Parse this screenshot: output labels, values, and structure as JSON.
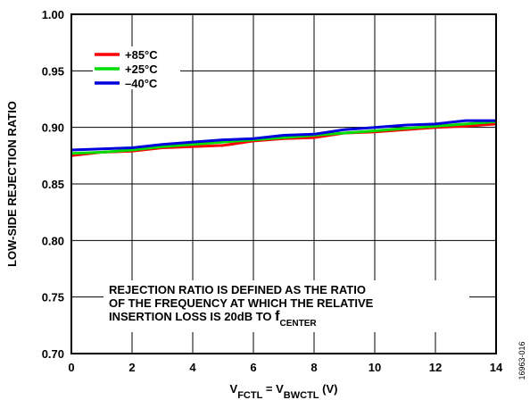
{
  "chart_data": {
    "type": "line",
    "title": "",
    "xlabel": {
      "parts": [
        {
          "text": "V",
          "sub": false
        },
        {
          "text": "FCTL",
          "sub": true
        },
        {
          "text": " = V",
          "sub": false
        },
        {
          "text": "BWCTL",
          "sub": true
        },
        {
          "text": " (V)",
          "sub": false
        }
      ]
    },
    "ylabel": "LOW-SIDE REJECTION RATIO",
    "xlim": [
      0,
      14
    ],
    "ylim": [
      0.7,
      1.0
    ],
    "xticks": [
      0,
      2,
      4,
      6,
      8,
      10,
      12,
      14
    ],
    "yticks": [
      0.7,
      0.75,
      0.8,
      0.85,
      0.9,
      0.95,
      1.0
    ],
    "xtick_labels": [
      "0",
      "2",
      "4",
      "6",
      "8",
      "10",
      "12",
      "14"
    ],
    "ytick_labels": [
      "0.70",
      "0.75",
      "0.80",
      "0.85",
      "0.90",
      "0.95",
      "1.00"
    ],
    "grid": true,
    "legend_position": "top-left",
    "series": [
      {
        "name": "+85°C",
        "color": "#ff0000",
        "x": [
          0,
          1,
          2,
          3,
          4,
          5,
          6,
          7,
          8,
          9,
          10,
          11,
          12,
          13,
          14
        ],
        "y": [
          0.875,
          0.878,
          0.879,
          0.882,
          0.883,
          0.884,
          0.888,
          0.89,
          0.891,
          0.895,
          0.896,
          0.898,
          0.9,
          0.901,
          0.903
        ]
      },
      {
        "name": "+25°C",
        "color": "#00dd00",
        "x": [
          0,
          1,
          2,
          3,
          4,
          5,
          6,
          7,
          8,
          9,
          10,
          11,
          12,
          13,
          14
        ],
        "y": [
          0.877,
          0.878,
          0.88,
          0.883,
          0.885,
          0.887,
          0.889,
          0.891,
          0.893,
          0.895,
          0.897,
          0.899,
          0.901,
          0.903,
          0.905
        ]
      },
      {
        "name": "–40°C",
        "color": "#0000dd",
        "x": [
          0,
          1,
          2,
          3,
          4,
          5,
          6,
          7,
          8,
          9,
          10,
          11,
          12,
          13,
          14
        ],
        "y": [
          0.88,
          0.881,
          0.882,
          0.885,
          0.887,
          0.889,
          0.89,
          0.893,
          0.894,
          0.898,
          0.9,
          0.902,
          0.903,
          0.906,
          0.906
        ]
      }
    ],
    "annotation": {
      "lines": [
        {
          "parts": [
            {
              "text": "REJECTION RATIO IS DEFINED AS THE RATIO",
              "sub": false
            }
          ]
        },
        {
          "parts": [
            {
              "text": "OF THE FREQUENCY AT WHICH THE RELATIVE",
              "sub": false
            }
          ]
        },
        {
          "parts": [
            {
              "text": "INSERTION LOSS IS 20dB TO ",
              "sub": false
            },
            {
              "text": "f",
              "sub": false,
              "big": true
            },
            {
              "text": "CENTER",
              "sub": true
            }
          ]
        }
      ]
    },
    "figure_id": "16963-016"
  }
}
